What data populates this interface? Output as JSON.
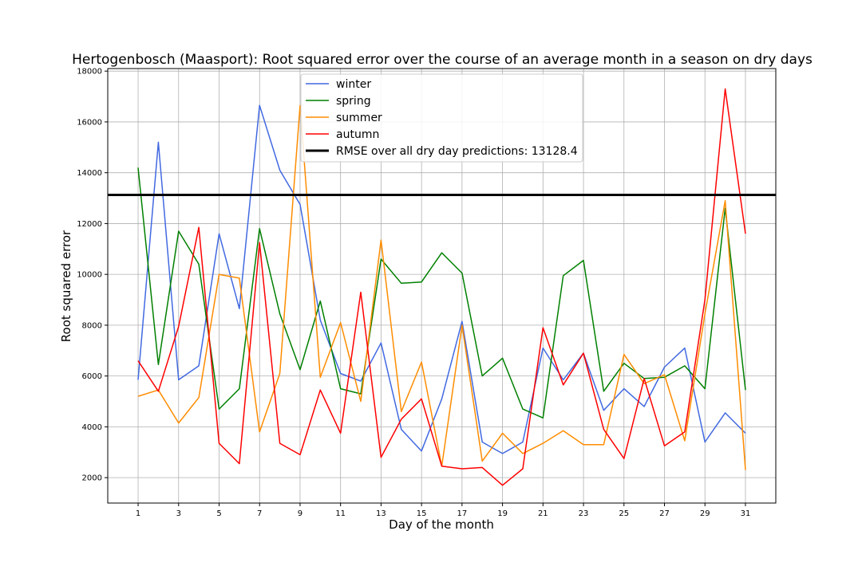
{
  "chart_data": {
    "type": "line",
    "title": "Hertogenbosch (Maasport): Root squared error over the course of an average month in a season on dry days",
    "xlabel": "Day of the month",
    "ylabel": "Root squared error",
    "xlim": [
      -0.5,
      32.5
    ],
    "ylim": [
      1000,
      18100
    ],
    "x_ticks": [
      1,
      3,
      5,
      7,
      9,
      11,
      13,
      15,
      17,
      19,
      21,
      23,
      25,
      27,
      29,
      31
    ],
    "y_ticks": [
      2000,
      4000,
      6000,
      8000,
      10000,
      12000,
      14000,
      16000,
      18000
    ],
    "grid": true,
    "legend_position": "top-center",
    "x": [
      1,
      2,
      3,
      4,
      5,
      6,
      7,
      8,
      9,
      10,
      11,
      12,
      13,
      14,
      15,
      16,
      17,
      18,
      19,
      20,
      21,
      22,
      23,
      24,
      25,
      26,
      27,
      28,
      29,
      30,
      31
    ],
    "series": [
      {
        "name": "winter",
        "color": "#4169e1",
        "values": [
          5850,
          15200,
          5850,
          6400,
          11600,
          8650,
          16650,
          14100,
          12750,
          8200,
          6100,
          5800,
          7300,
          3900,
          3050,
          5100,
          8150,
          3400,
          2950,
          3400,
          7100,
          5850,
          6900,
          4650,
          5500,
          4800,
          6350,
          7100,
          3400,
          4550,
          3750
        ]
      },
      {
        "name": "spring",
        "color": "#008000",
        "values": [
          14200,
          6450,
          11700,
          10400,
          4700,
          5500,
          11800,
          8450,
          6250,
          8950,
          5500,
          5300,
          10600,
          9650,
          9700,
          10850,
          10050,
          6000,
          6700,
          4700,
          4350,
          9950,
          10550,
          5400,
          6500,
          5900,
          5950,
          6400,
          5500,
          12600,
          5450
        ]
      },
      {
        "name": "summer",
        "color": "#ff8c00",
        "values": [
          5200,
          5450,
          4150,
          5150,
          10000,
          9850,
          3800,
          6100,
          16650,
          5950,
          8100,
          5000,
          11350,
          4600,
          6550,
          2450,
          8000,
          2650,
          3750,
          2950,
          3350,
          3850,
          3300,
          3300,
          6850,
          5700,
          6050,
          3450,
          8450,
          12900,
          2300
        ]
      },
      {
        "name": "autumn",
        "color": "#ff0000",
        "values": [
          6600,
          5400,
          7950,
          11850,
          3350,
          2550,
          11250,
          3350,
          2900,
          5450,
          3750,
          9300,
          2800,
          4300,
          5100,
          2450,
          2350,
          2400,
          1700,
          2350,
          7900,
          5650,
          6900,
          3900,
          2750,
          5900,
          3250,
          3800,
          9000,
          17300,
          11600
        ]
      }
    ],
    "reference_line": {
      "label": "RMSE over all dry day predictions: 13128.4",
      "value": 13128.4,
      "color": "#000000"
    }
  }
}
